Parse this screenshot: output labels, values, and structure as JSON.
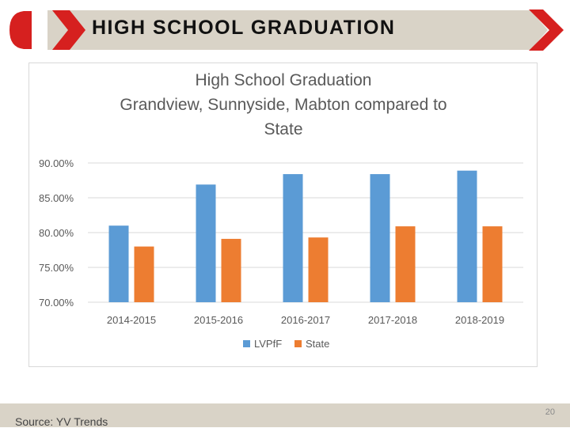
{
  "slide": {
    "title": "HIGH SCHOOL GRADUATION",
    "source": "Source: YV Trends",
    "page_number": "20",
    "colors": {
      "banner_bg": "#d9d3c7",
      "accent_red": "#d6201f",
      "footer_bg": "#d9d3c7"
    }
  },
  "chart_data": {
    "type": "bar",
    "title_lines": [
      "High School Graduation",
      "Grandview, Sunnyside, Mabton compared to",
      "State"
    ],
    "categories": [
      "2014-2015",
      "2015-2016",
      "2016-2017",
      "2017-2018",
      "2018-2019"
    ],
    "series": [
      {
        "name": "LVPfF",
        "color": "#5b9bd5",
        "values": [
          81.0,
          86.9,
          88.4,
          88.4,
          88.9
        ]
      },
      {
        "name": "State",
        "color": "#ed7d31",
        "values": [
          78.0,
          79.1,
          79.3,
          80.9,
          80.9
        ]
      }
    ],
    "ylim": [
      70,
      90
    ],
    "yticks": [
      90,
      85,
      80,
      75,
      70
    ],
    "ytick_labels": [
      "90.00%",
      "85.00%",
      "80.00%",
      "75.00%",
      "70.00%"
    ],
    "grid": true,
    "legend_position": "bottom"
  }
}
